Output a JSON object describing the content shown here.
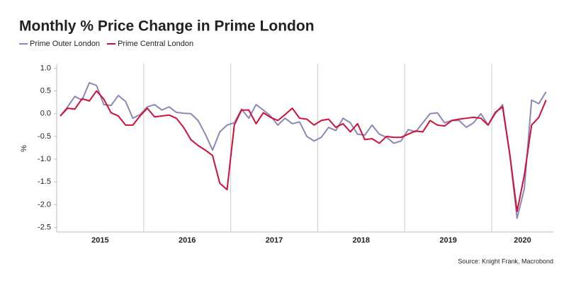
{
  "chart_data": {
    "type": "line",
    "title": "Monthly % Price Change in Prime London",
    "y_label": "%",
    "source": "Source: Knight Frank, Macrobond",
    "categories": [
      "2015",
      null,
      null,
      null,
      null,
      null,
      null,
      null,
      null,
      null,
      null,
      null,
      "2016",
      null,
      null,
      null,
      null,
      null,
      null,
      null,
      null,
      null,
      null,
      null,
      "2017",
      null,
      null,
      null,
      null,
      null,
      null,
      null,
      null,
      null,
      null,
      null,
      "2018",
      null,
      null,
      null,
      null,
      null,
      null,
      null,
      null,
      null,
      null,
      null,
      "2019",
      null,
      null,
      null,
      null,
      null,
      null,
      null,
      null,
      null,
      null,
      null,
      "2020",
      null,
      null,
      null,
      null,
      null,
      null,
      null
    ],
    "series": [
      {
        "name": "Prime Outer London",
        "color": "#8b87b8",
        "values": [
          -0.05,
          0.15,
          0.38,
          0.3,
          0.68,
          0.62,
          0.2,
          0.18,
          0.4,
          0.27,
          -0.1,
          -0.02,
          0.15,
          0.2,
          0.08,
          0.15,
          0.03,
          0.01,
          0.0,
          -0.15,
          -0.45,
          -0.8,
          -0.4,
          -0.25,
          -0.2,
          0.1,
          -0.1,
          0.2,
          0.08,
          -0.05,
          -0.25,
          -0.1,
          -0.22,
          -0.18,
          -0.5,
          -0.6,
          -0.52,
          -0.3,
          -0.37,
          -0.1,
          -0.2,
          -0.45,
          -0.47,
          -0.25,
          -0.45,
          -0.52,
          -0.65,
          -0.6,
          -0.35,
          -0.4,
          -0.2,
          0.0,
          0.02,
          -0.2,
          -0.15,
          -0.15,
          -0.3,
          -0.2,
          0.0,
          -0.25,
          0.0,
          0.2,
          -0.9,
          -2.3,
          -1.65,
          0.3,
          0.22,
          0.48
        ]
      },
      {
        "name": "Prime Central London",
        "color": "#d0103a",
        "values": [
          -0.05,
          0.12,
          0.1,
          0.33,
          0.28,
          0.5,
          0.32,
          0.02,
          -0.05,
          -0.25,
          -0.25,
          -0.05,
          0.12,
          -0.07,
          -0.05,
          -0.03,
          -0.1,
          -0.3,
          -0.57,
          -0.7,
          -0.8,
          -0.92,
          -1.53,
          -1.67,
          -0.25,
          0.08,
          0.08,
          -0.22,
          0.02,
          -0.08,
          -0.15,
          -0.02,
          0.12,
          -0.1,
          -0.12,
          -0.25,
          -0.15,
          -0.12,
          -0.3,
          -0.22,
          -0.4,
          -0.22,
          -0.57,
          -0.55,
          -0.65,
          -0.5,
          -0.52,
          -0.52,
          -0.45,
          -0.38,
          -0.4,
          -0.15,
          -0.25,
          -0.27,
          -0.15,
          -0.12,
          -0.1,
          -0.08,
          -0.1,
          -0.25,
          0.03,
          0.15,
          -0.9,
          -2.15,
          -1.35,
          -0.25,
          -0.08,
          0.3
        ]
      }
    ],
    "ylim": [
      -2.6,
      1.1
    ],
    "yticks": [
      {
        "value": 1,
        "label": "1.0"
      },
      0.5,
      {
        "value": 0,
        "label": "0.0"
      },
      -0.5,
      {
        "value": -1,
        "label": "-1.0"
      },
      -1.5,
      {
        "value": -2,
        "label": "-2.0"
      },
      -2.5
    ],
    "grid": false,
    "legend": "top-left"
  }
}
